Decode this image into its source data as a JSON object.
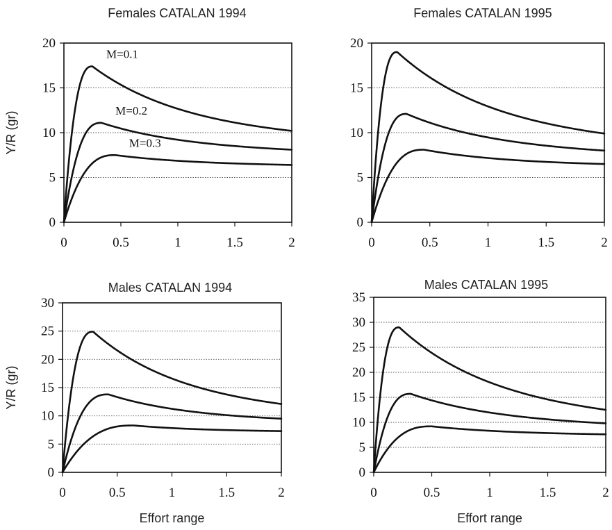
{
  "chart_data": [
    {
      "type": "line",
      "title": "Females CATALAN 1994",
      "xlabel": "",
      "ylabel": "Y/R (gr)",
      "xlim": [
        0,
        2
      ],
      "ylim": [
        0,
        20
      ],
      "x_ticks": [
        "0",
        "0.5",
        "1",
        "1.5",
        "2"
      ],
      "y_ticks": [
        "0",
        "5",
        "10",
        "15",
        "20"
      ],
      "grid": "horizontal dotted",
      "series": [
        {
          "name": "M=0.1",
          "peak_x": 0.25,
          "peak_y": 17.4,
          "end_y": 10.2
        },
        {
          "name": "M=0.2",
          "peak_x": 0.33,
          "peak_y": 11.1,
          "end_y": 8.1
        },
        {
          "name": "M=0.3",
          "peak_x": 0.45,
          "peak_y": 7.5,
          "end_y": 6.4
        }
      ]
    },
    {
      "type": "line",
      "title": "Females CATALAN 1995",
      "xlabel": "",
      "ylabel": "",
      "xlim": [
        0,
        2
      ],
      "ylim": [
        0,
        20
      ],
      "x_ticks": [
        "0",
        "0.5",
        "1",
        "1.5",
        "2"
      ],
      "y_ticks": [
        "0",
        "5",
        "10",
        "15",
        "20"
      ],
      "grid": "horizontal dotted",
      "series": [
        {
          "peak_x": 0.22,
          "peak_y": 19.0,
          "end_y": 9.9
        },
        {
          "peak_x": 0.3,
          "peak_y": 12.1,
          "end_y": 8.0
        },
        {
          "peak_x": 0.45,
          "peak_y": 8.1,
          "end_y": 6.5
        }
      ]
    },
    {
      "type": "line",
      "title": "Males CATALAN 1994",
      "xlabel": "Effort range",
      "ylabel": "Y/R (gr)",
      "xlim": [
        0,
        2
      ],
      "ylim": [
        0,
        30
      ],
      "x_ticks": [
        "0",
        "0.5",
        "1",
        "1.5",
        "2"
      ],
      "y_ticks": [
        "0",
        "5",
        "10",
        "15",
        "20",
        "25",
        "30"
      ],
      "grid": "horizontal dotted",
      "series": [
        {
          "peak_x": 0.28,
          "peak_y": 24.9,
          "end_y": 12.1
        },
        {
          "peak_x": 0.42,
          "peak_y": 13.8,
          "end_y": 9.5
        },
        {
          "peak_x": 0.65,
          "peak_y": 8.3,
          "end_y": 7.3
        }
      ]
    },
    {
      "type": "line",
      "title": "Males CATALAN 1995",
      "xlabel": "Effort range",
      "ylabel": "",
      "xlim": [
        0,
        2
      ],
      "ylim": [
        0,
        35
      ],
      "x_ticks": [
        "0",
        "0.5",
        "1",
        "1.5",
        "2"
      ],
      "y_ticks": [
        "0",
        "5",
        "10",
        "15",
        "20",
        "25",
        "30",
        "35"
      ],
      "grid": "horizontal dotted",
      "series": [
        {
          "peak_x": 0.22,
          "peak_y": 29.0,
          "end_y": 12.5
        },
        {
          "peak_x": 0.32,
          "peak_y": 15.7,
          "end_y": 9.8
        },
        {
          "peak_x": 0.5,
          "peak_y": 9.2,
          "end_y": 7.6
        }
      ]
    }
  ]
}
